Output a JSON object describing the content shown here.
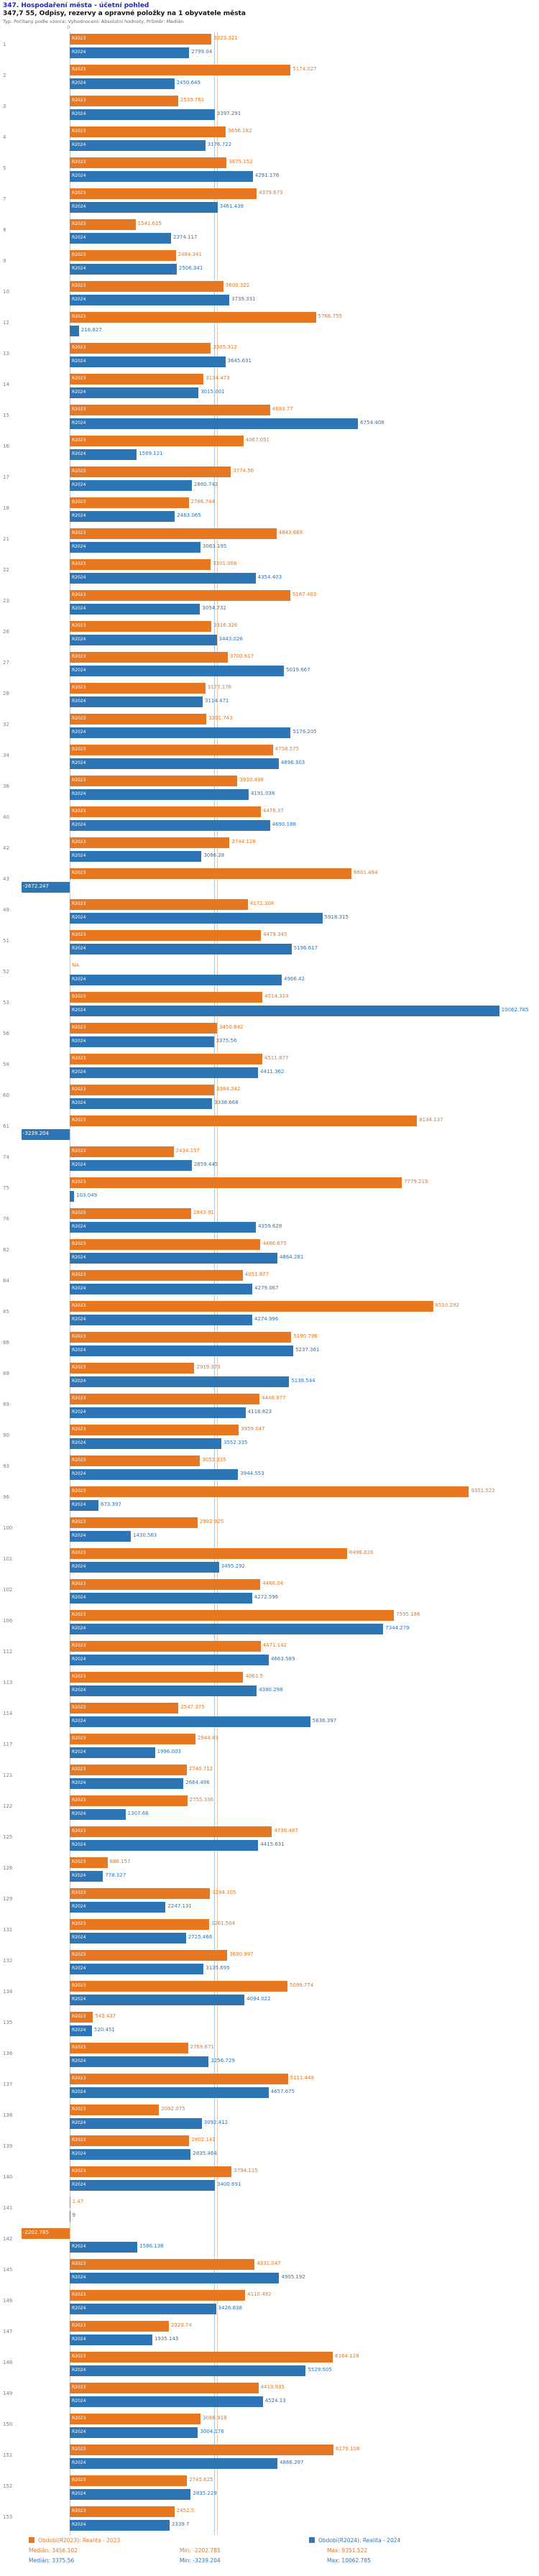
{
  "header": {
    "title_line1": "347. Hospodaření města - účetní pohled",
    "title_line2": "347,7 55, Odpisy, rezervy a opravné položky na 1 obyvatele města",
    "subtitle": "Typ: Počítaný podle vzorce; Vyhodnocení: Absolutní hodnoty, Průměr: Medián",
    "axis_zero_label": "0"
  },
  "footer": {
    "median_label": "Medián",
    "min_label": "Min",
    "max_label": "Max"
  },
  "chart_data": {
    "type": "bar",
    "orientation": "horizontal",
    "xlim": [
      -3300,
      10100
    ],
    "grid": "median-lines",
    "legend_position": "bottom",
    "series": [
      {
        "key": "r2023",
        "name": "R2023",
        "color": "#e87722",
        "legend": "Období(R2023): Realita - 2023",
        "median": "3456.102",
        "min": "-2202.785",
        "max": "9351.522"
      },
      {
        "key": "r2024",
        "name": "R2024",
        "color": "#2e75b6",
        "legend": "Období(R2024): Realita - 2024",
        "median": "3375.56",
        "min": "-3239.204",
        "max": "10062.785"
      }
    ],
    "rows": [
      [
        "1",
        "3323.321",
        "2799.04"
      ],
      [
        "2",
        "5174.027",
        "2450.649"
      ],
      [
        "3",
        "2539.761",
        "3397.291"
      ],
      [
        "4",
        "3656.182",
        "3176.722"
      ],
      [
        "5",
        "3675.152",
        "4291.176"
      ],
      [
        "7",
        "4379.673",
        "3461.439"
      ],
      [
        "8",
        "1541.615",
        "2374.117"
      ],
      [
        "9",
        "2484.341",
        "2506.341"
      ],
      [
        "10",
        "3600.322",
        "3739.331"
      ],
      [
        "12",
        "5766.755",
        "216.827"
      ],
      [
        "13",
        "3305.312",
        "3645.631"
      ],
      [
        "14",
        "3134.473",
        "3015.001"
      ],
      [
        "15",
        "4693.77",
        "6754.408"
      ],
      [
        "16",
        "4067.051",
        "1569.121"
      ],
      [
        "17",
        "3774.56",
        "2860.742"
      ],
      [
        "18",
        "2786.744",
        "2463.065"
      ],
      [
        "21",
        "4843.669",
        "3063.195"
      ],
      [
        "22",
        "3301.068",
        "4354.403"
      ],
      [
        "23",
        "5167.403",
        "3054.732"
      ],
      [
        "26",
        "3316.326",
        "3443.026"
      ],
      [
        "27",
        "3700.617",
        "5019.667"
      ],
      [
        "28",
        "3177.176",
        "3114.471"
      ],
      [
        "32",
        "3201.743",
        "5176.205"
      ],
      [
        "34",
        "4758.575",
        "4896.303"
      ],
      [
        "36",
        "3930.498",
        "4191.038"
      ],
      [
        "40",
        "4476.37",
        "4690.188"
      ],
      [
        "42",
        "3744.128",
        "3086.28"
      ],
      [
        "43",
        "6601.494",
        "-2672.247"
      ],
      [
        "49",
        "4172.308",
        "5918.315"
      ],
      [
        "51",
        "4479.345",
        "5196.617"
      ],
      [
        "52",
        "NA",
        "4966.42"
      ],
      [
        "53",
        "4514.324",
        "10062.785"
      ],
      [
        "56",
        "3450.842",
        "3375.56"
      ],
      [
        "58",
        "4511.877",
        "4411.362"
      ],
      [
        "60",
        "3384.342",
        "3338.668"
      ],
      [
        "61",
        "8134.137",
        "-3239.204"
      ],
      [
        "74",
        "2434.157",
        "2859.445"
      ],
      [
        "75",
        "7779.219",
        "103.049"
      ],
      [
        "76",
        "2843.91",
        "4359.628"
      ],
      [
        "82",
        "4466.675",
        "4864.281"
      ],
      [
        "84",
        "4051.877",
        "4279.067"
      ],
      [
        "85",
        "8510.292",
        "4274.996"
      ],
      [
        "86",
        "5190.796",
        "5237.361"
      ],
      [
        "88",
        "2919.373",
        "5138.544"
      ],
      [
        "89",
        "4446.977",
        "4118.823"
      ],
      [
        "90",
        "3959.047",
        "3552.335"
      ],
      [
        "93",
        "3052.335",
        "3944.553"
      ],
      [
        "96",
        "9351.522",
        "673.397"
      ],
      [
        "100",
        "2992.925",
        "1430.563"
      ],
      [
        "101",
        "6496.826",
        "3495.292"
      ],
      [
        "102",
        "4466.04",
        "4272.596"
      ],
      [
        "106",
        "7595.186",
        "7344.279"
      ],
      [
        "112",
        "4471.142",
        "4663.589"
      ],
      [
        "113",
        "4063.5",
        "4380.298"
      ],
      [
        "114",
        "2547.375",
        "5636.397"
      ],
      [
        "117",
        "2944.83",
        "1996.003"
      ],
      [
        "121",
        "2740.712",
        "2664.496"
      ],
      [
        "122",
        "2755.336",
        "1307.68"
      ],
      [
        "125",
        "4736.487",
        "4415.631"
      ],
      [
        "126",
        "886.157",
        "778.327"
      ],
      [
        "129",
        "3284.305",
        "2247.131"
      ],
      [
        "131",
        "3261.504",
        "2725.466"
      ],
      [
        "132",
        "3690.997",
        "3135.695"
      ],
      [
        "134",
        "5099.774",
        "4094.022"
      ],
      [
        "135",
        "543.437",
        "520.451"
      ],
      [
        "136",
        "2769.671",
        "3256.729"
      ],
      [
        "137",
        "5111.448",
        "4657.675"
      ],
      [
        "138",
        "2092.075",
        "3092.412"
      ],
      [
        "139",
        "2802.141",
        "2835.464"
      ],
      [
        "140",
        "3794.115",
        "3400.691"
      ],
      [
        "141",
        "1.47",
        "9"
      ],
      [
        "142",
        "-2202.785",
        "1586.138"
      ],
      [
        "145",
        "4331.047",
        "4905.192"
      ],
      [
        "146",
        "4110.492",
        "3426.838"
      ],
      [
        "147",
        "2320.74",
        "1935.143"
      ],
      [
        "148",
        "6164.128",
        "5529.505"
      ],
      [
        "149",
        "4419.935",
        "4524.13"
      ],
      [
        "150",
        "3066.918",
        "3004.176"
      ],
      [
        "151",
        "6179.108",
        "4866.297"
      ],
      [
        "152",
        "2745.625",
        "2835.229"
      ],
      [
        "153",
        "2452.5",
        "2339.7"
      ]
    ]
  }
}
